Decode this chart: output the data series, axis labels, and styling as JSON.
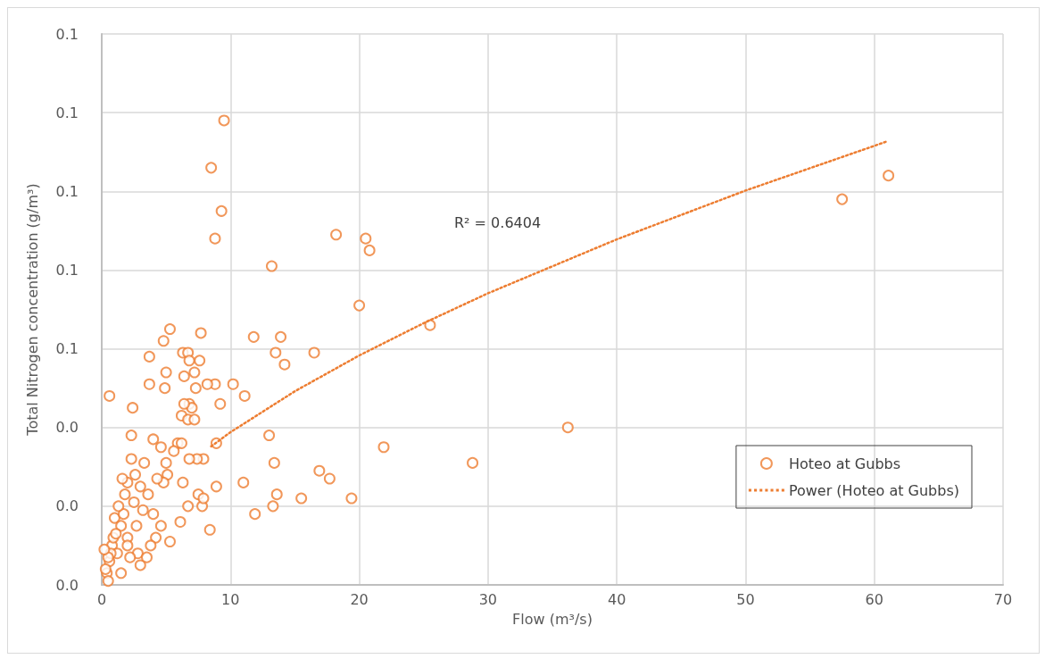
{
  "chart_data": {
    "type": "scatter",
    "xlabel": "Flow (m³/s)",
    "ylabel": "Total Nitrogen concentration (g/m³)",
    "xlim": [
      0,
      70
    ],
    "xticks": [
      0,
      10,
      20,
      30,
      40,
      50,
      60,
      70
    ],
    "ylim": [
      0,
      0.14
    ],
    "yticks": [
      {
        "value": 0,
        "label": "0.0"
      },
      {
        "value": 0.02,
        "label": "0.0"
      },
      {
        "value": 0.04,
        "label": "0.0"
      },
      {
        "value": 0.06,
        "label": "0.1"
      },
      {
        "value": 0.08,
        "label": "0.1"
      },
      {
        "value": 0.1,
        "label": "0.1"
      },
      {
        "value": 0.12,
        "label": "0.1"
      },
      {
        "value": 0.14,
        "label": "0.1"
      }
    ],
    "grid": true,
    "legend": "right",
    "annotations": [
      "R² = 0.6404"
    ],
    "series": [
      {
        "name": "Hoteo at Gubbs",
        "color": "#ed7d31",
        "marker": "circle",
        "x": [
          9.5,
          8.5,
          9.3,
          8.8,
          13.2,
          18.2,
          20.5,
          20.8,
          20.0,
          25.5,
          57.5,
          61.1,
          36.2,
          28.8,
          21.9,
          16.9,
          17.7,
          19.4,
          15.5,
          13.6,
          13.3,
          11.9,
          11.0,
          13.4,
          13.0,
          16.5,
          13.5,
          13.9,
          11.8,
          14.2,
          10.2,
          11.1,
          9.2,
          8.8,
          8.9,
          8.9,
          8.4,
          7.7,
          7.6,
          5.3,
          4.8,
          3.7,
          5.0,
          3.7,
          4.9,
          0.6,
          2.4,
          6.3,
          6.7,
          6.4,
          6.8,
          7.2,
          7.3,
          6.8,
          7.0,
          6.2,
          6.7,
          8.2,
          6.4,
          2.3,
          4.0,
          4.6,
          5.9,
          6.2,
          7.2,
          7.9,
          7.4,
          5.6,
          6.8,
          6.3,
          5.1,
          4.8,
          3.0,
          2.0,
          2.3,
          1.6,
          7.5,
          7.8,
          7.9,
          6.7,
          6.1,
          5.3,
          4.6,
          3.0,
          2.8,
          3.5,
          1.0,
          1.5,
          2.0,
          0.8,
          1.2,
          0.6,
          0.4,
          0.5,
          0.3,
          0.9,
          1.7,
          2.5,
          3.2,
          4.0,
          4.2,
          3.8,
          2.2,
          1.5,
          0.7,
          1.1,
          2.7,
          3.6,
          4.3,
          5.0,
          3.3,
          2.6,
          1.8,
          1.3,
          0.5,
          0.2,
          2.0
        ],
        "values": [
          0.118,
          0.106,
          0.095,
          0.088,
          0.081,
          0.089,
          0.088,
          0.085,
          0.071,
          0.066,
          0.098,
          0.104,
          0.04,
          0.031,
          0.035,
          0.029,
          0.027,
          0.022,
          0.022,
          0.023,
          0.02,
          0.018,
          0.026,
          0.031,
          0.038,
          0.059,
          0.059,
          0.063,
          0.063,
          0.056,
          0.051,
          0.048,
          0.046,
          0.051,
          0.036,
          0.025,
          0.014,
          0.064,
          0.057,
          0.065,
          0.062,
          0.058,
          0.054,
          0.051,
          0.05,
          0.048,
          0.045,
          0.059,
          0.059,
          0.053,
          0.057,
          0.054,
          0.05,
          0.046,
          0.045,
          0.043,
          0.042,
          0.051,
          0.046,
          0.038,
          0.037,
          0.035,
          0.036,
          0.036,
          0.042,
          0.032,
          0.032,
          0.034,
          0.032,
          0.026,
          0.028,
          0.026,
          0.025,
          0.026,
          0.032,
          0.027,
          0.023,
          0.02,
          0.022,
          0.02,
          0.016,
          0.011,
          0.015,
          0.005,
          0.008,
          0.007,
          0.017,
          0.015,
          0.012,
          0.01,
          0.008,
          0.006,
          0.003,
          0.001,
          0.004,
          0.012,
          0.018,
          0.021,
          0.019,
          0.018,
          0.012,
          0.01,
          0.007,
          0.003,
          0.008,
          0.013,
          0.015,
          0.023,
          0.027,
          0.031,
          0.031,
          0.028,
          0.023,
          0.02,
          0.007,
          0.009,
          0.01
        ]
      },
      {
        "name": "Power (Hoteo at Gubbs)",
        "type": "line",
        "color": "#ed7d31",
        "line_style": "dotted",
        "marker": "none",
        "x": [
          8.5,
          10,
          15,
          20,
          25,
          30,
          40,
          50,
          61
        ],
        "values": [
          0.0352,
          0.0388,
          0.0492,
          0.0583,
          0.0665,
          0.0741,
          0.0878,
          0.1002,
          0.1127
        ]
      }
    ]
  }
}
